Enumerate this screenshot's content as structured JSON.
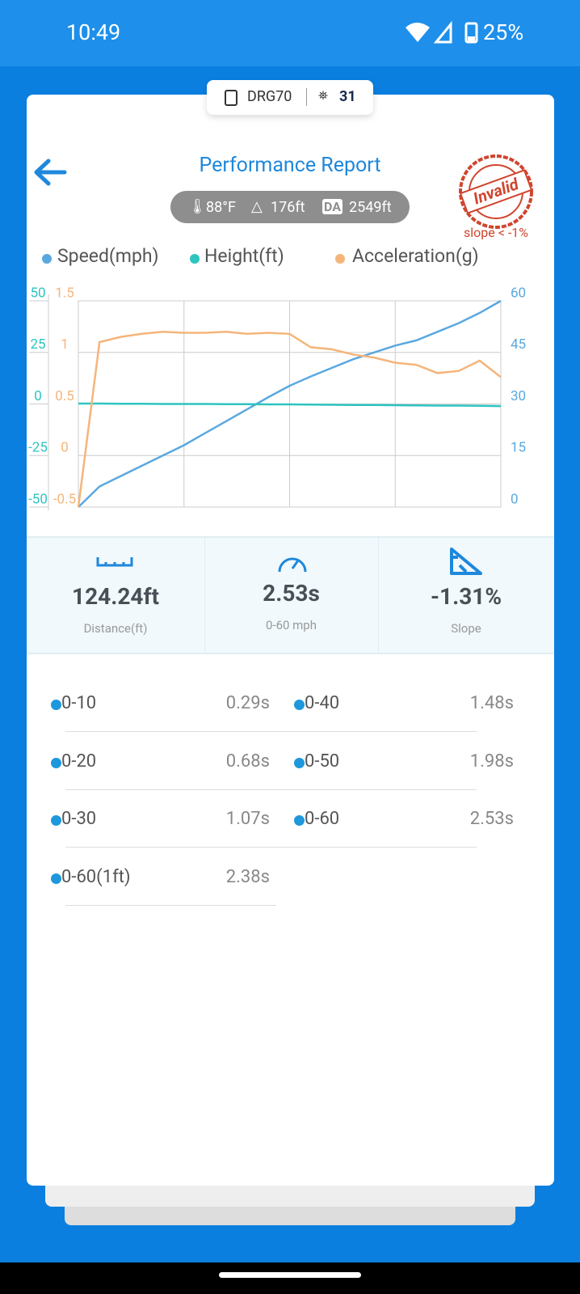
{
  "status_bar": {
    "time": "10:49",
    "battery": "25%"
  },
  "device": {
    "name": "DRG70",
    "count": "31"
  },
  "header": {
    "title": "Performance Report",
    "temperature": "88°F",
    "altitude": "176ft",
    "da_badge": "DA",
    "density_altitude": "2549ft",
    "stamp": "Invalid",
    "stamp_note": "slope < -1%"
  },
  "chart_data": {
    "type": "line",
    "grid": true,
    "series": [
      {
        "name": "Speed(mph)",
        "color": "#5aa8e0",
        "axis": "y2",
        "values": [
          0,
          6,
          9,
          12,
          15,
          18,
          21.5,
          25,
          28.5,
          32,
          35.3,
          38,
          40.5,
          43,
          45,
          47,
          48.5,
          51,
          53.5,
          56.5,
          60
        ]
      },
      {
        "name": "Height(ft)",
        "color": "#2ec4c0",
        "axis": "y",
        "values": [
          0.2,
          0.2,
          0.1,
          0.1,
          0,
          0,
          0,
          -0.1,
          -0.1,
          -0.2,
          -0.2,
          -0.3,
          -0.4,
          -0.5,
          -0.5,
          -0.6,
          -0.7,
          -0.8,
          -0.8,
          -0.9,
          -1
        ]
      },
      {
        "name": "Acceleration(g)",
        "color": "#f5b57a",
        "axis": "y3",
        "values": [
          -0.5,
          1.1,
          1.15,
          1.18,
          1.2,
          1.19,
          1.19,
          1.2,
          1.18,
          1.19,
          1.18,
          1.05,
          1.03,
          0.98,
          0.95,
          0.9,
          0.88,
          0.8,
          0.82,
          0.92,
          0.76
        ]
      }
    ],
    "ylim": [
      -50,
      50
    ],
    "yticks": [
      -50,
      -25,
      0,
      25,
      50
    ],
    "y2lim": [
      0,
      60
    ],
    "y2ticks": [
      0,
      15,
      30,
      45,
      60
    ],
    "y3lim": [
      -0.5,
      1.5
    ],
    "y3ticks": [
      -0.5,
      0,
      0.5,
      1,
      1.5
    ]
  },
  "stats": [
    {
      "value": "124.24ft",
      "label": "Distance(ft)"
    },
    {
      "value": "2.53s",
      "label": "0-60 mph"
    },
    {
      "value": "-1.31%",
      "label": "Slope"
    }
  ],
  "splits": [
    {
      "label": "0-10",
      "value": "0.29s"
    },
    {
      "label": "0-40",
      "value": "1.48s"
    },
    {
      "label": "0-20",
      "value": "0.68s"
    },
    {
      "label": "0-50",
      "value": "1.98s"
    },
    {
      "label": "0-30",
      "value": "1.07s"
    },
    {
      "label": "0-60",
      "value": "2.53s"
    },
    {
      "label": "0-60(1ft)",
      "value": "2.38s"
    }
  ]
}
